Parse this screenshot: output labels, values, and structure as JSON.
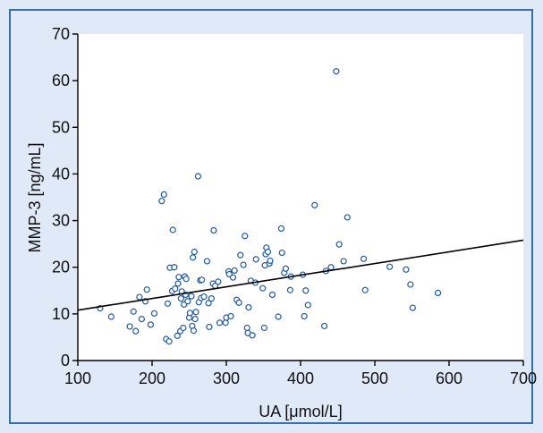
{
  "chart_data": {
    "type": "scatter",
    "xlabel": "UA [μmol/L]",
    "ylabel": "MMP-3 [ng/mL]",
    "xlim": [
      100,
      700
    ],
    "ylim": [
      0,
      70
    ],
    "xticks": [
      100,
      200,
      300,
      400,
      500,
      600,
      700
    ],
    "yticks": [
      0,
      10,
      20,
      30,
      40,
      50,
      60,
      70
    ],
    "grid": false,
    "legend": "none",
    "colors": {
      "point": "#1f5aa6",
      "line": "#000000",
      "background": "#dfe9f7",
      "border": "#2f6fb4",
      "plot": "#ffffff"
    },
    "trendline": {
      "x": [
        100,
        700
      ],
      "y": [
        10.8,
        25.8
      ]
    },
    "points": [
      [
        130,
        11.2
      ],
      [
        145,
        9.4
      ],
      [
        170,
        7.3
      ],
      [
        175,
        10.5
      ],
      [
        178,
        6.3
      ],
      [
        183,
        13.6
      ],
      [
        186,
        8.9
      ],
      [
        191,
        12.7
      ],
      [
        193,
        15.2
      ],
      [
        198,
        7.7
      ],
      [
        203,
        10.1
      ],
      [
        213,
        34.2
      ],
      [
        216,
        35.6
      ],
      [
        219,
        4.6
      ],
      [
        221,
        12.2
      ],
      [
        223,
        4.1
      ],
      [
        224,
        19.9
      ],
      [
        227,
        14.9
      ],
      [
        228,
        28.0
      ],
      [
        230,
        20.0
      ],
      [
        231,
        15.4
      ],
      [
        234,
        5.3
      ],
      [
        235,
        16.5
      ],
      [
        236,
        17.9
      ],
      [
        238,
        6.3
      ],
      [
        239,
        13.3
      ],
      [
        240,
        14.8
      ],
      [
        242,
        7.0
      ],
      [
        243,
        12.0
      ],
      [
        244,
        18.0
      ],
      [
        245,
        14.1
      ],
      [
        246,
        17.5
      ],
      [
        248,
        12.7
      ],
      [
        250,
        9.2
      ],
      [
        251,
        10.2
      ],
      [
        253,
        13.8
      ],
      [
        254,
        7.4
      ],
      [
        255,
        22.1
      ],
      [
        256,
        6.4
      ],
      [
        257,
        23.3
      ],
      [
        258,
        8.9
      ],
      [
        259,
        10.4
      ],
      [
        262,
        39.5
      ],
      [
        263,
        12.5
      ],
      [
        265,
        17.2
      ],
      [
        266,
        13.4
      ],
      [
        267,
        17.3
      ],
      [
        270,
        13.7
      ],
      [
        274,
        21.3
      ],
      [
        276,
        12.3
      ],
      [
        277,
        7.2
      ],
      [
        280,
        13.3
      ],
      [
        282,
        16.5
      ],
      [
        283,
        27.9
      ],
      [
        285,
        16.0
      ],
      [
        289,
        16.9
      ],
      [
        291,
        8.1
      ],
      [
        299,
        8.1
      ],
      [
        300,
        9.2
      ],
      [
        303,
        19.1
      ],
      [
        304,
        18.5
      ],
      [
        306,
        9.5
      ],
      [
        309,
        17.8
      ],
      [
        311,
        19.3
      ],
      [
        314,
        13.0
      ],
      [
        317,
        12.4
      ],
      [
        319,
        22.6
      ],
      [
        323,
        20.5
      ],
      [
        325,
        26.7
      ],
      [
        328,
        7.0
      ],
      [
        329,
        5.9
      ],
      [
        330,
        11.4
      ],
      [
        333,
        17.1
      ],
      [
        335,
        5.4
      ],
      [
        339,
        16.7
      ],
      [
        340,
        21.7
      ],
      [
        349,
        15.5
      ],
      [
        351,
        7.0
      ],
      [
        352,
        20.4
      ],
      [
        353,
        22.8
      ],
      [
        354,
        24.2
      ],
      [
        356,
        23.3
      ],
      [
        358,
        20.8
      ],
      [
        359,
        21.4
      ],
      [
        362,
        14.1
      ],
      [
        370,
        9.4
      ],
      [
        374,
        28.3
      ],
      [
        375,
        23.1
      ],
      [
        378,
        18.8
      ],
      [
        380,
        19.7
      ],
      [
        386,
        15.1
      ],
      [
        387,
        18.0
      ],
      [
        403,
        18.4
      ],
      [
        405,
        9.5
      ],
      [
        407,
        15.0
      ],
      [
        410,
        11.9
      ],
      [
        419,
        33.3
      ],
      [
        432,
        7.4
      ],
      [
        434,
        19.2
      ],
      [
        441,
        20.0
      ],
      [
        448,
        62.0
      ],
      [
        452,
        24.9
      ],
      [
        458,
        21.3
      ],
      [
        463,
        30.7
      ],
      [
        485,
        21.8
      ],
      [
        487,
        15.1
      ],
      [
        520,
        20.1
      ],
      [
        542,
        19.5
      ],
      [
        548,
        16.3
      ],
      [
        551,
        11.3
      ],
      [
        585,
        14.5
      ]
    ]
  }
}
